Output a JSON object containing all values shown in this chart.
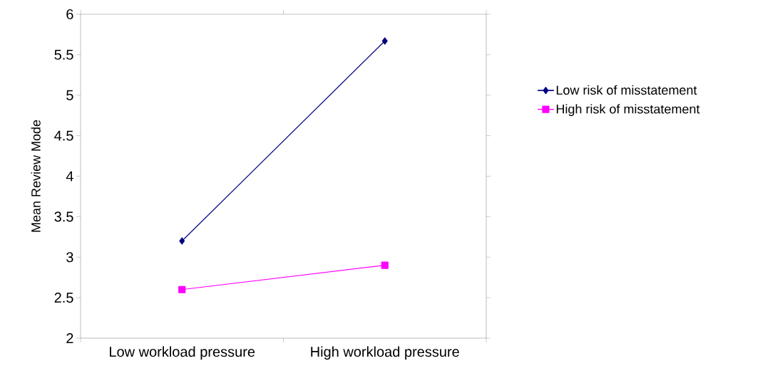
{
  "chart_data": {
    "type": "line",
    "ylabel": "Mean Review Mode",
    "categories": [
      "Low workload pressure",
      "High workload pressure"
    ],
    "series": [
      {
        "name": "Low risk of misstatement",
        "color": "#000080",
        "values": [
          3.2,
          5.67
        ],
        "marker": "diamond"
      },
      {
        "name": "High risk of misstatement",
        "color": "#ff00ff",
        "values": [
          2.6,
          2.9
        ],
        "marker": "square"
      }
    ],
    "ylim": [
      2,
      6
    ],
    "yticks": [
      2,
      2.5,
      3,
      3.5,
      4,
      4.5,
      5,
      5.5,
      6
    ],
    "legend": "right",
    "grid": false
  }
}
